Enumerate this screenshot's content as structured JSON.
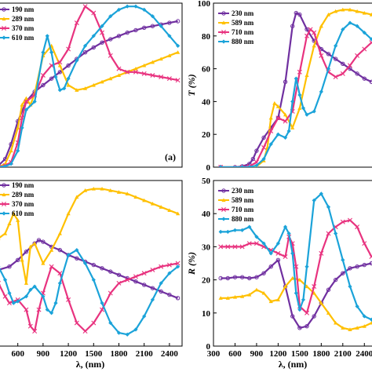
{
  "chart_data": [
    {
      "type": "line",
      "panel_label": "(a)",
      "ylabel": "",
      "xlabel": "",
      "xlim": [
        370,
        2550
      ],
      "ylim": [
        0,
        100
      ],
      "xticks": [],
      "yticks": [],
      "legend": "top-left",
      "series": [
        {
          "name": "190 nm",
          "color": "#7030A0",
          "marker": "circle",
          "x": [
            370,
            450,
            520,
            600,
            700,
            800,
            900,
            1000,
            1100,
            1200,
            1300,
            1400,
            1500,
            1600,
            1700,
            1800,
            1900,
            2000,
            2100,
            2200,
            2300,
            2400,
            2500
          ],
          "y": [
            1,
            5,
            14,
            28,
            40,
            46,
            50,
            54,
            58,
            62,
            66,
            70,
            73,
            76,
            78,
            80,
            82,
            83.5,
            85,
            86,
            87,
            88,
            89
          ]
        },
        {
          "name": "289 nm",
          "color": "#FFC000",
          "marker": "triangle",
          "x": [
            370,
            450,
            520,
            600,
            650,
            700,
            750,
            800,
            900,
            1000,
            1100,
            1200,
            1300,
            1400,
            1500,
            1600,
            1700,
            1800,
            1900,
            2000,
            2100,
            2200,
            2300,
            2400,
            2500
          ],
          "y": [
            0,
            2,
            10,
            24,
            38,
            42,
            38,
            45,
            68,
            74,
            62,
            50,
            47,
            48,
            50,
            52,
            54,
            56,
            58,
            60,
            62,
            64,
            66,
            68,
            70
          ]
        },
        {
          "name": "370 nm",
          "color": "#E8337F",
          "marker": "x",
          "x": [
            370,
            450,
            520,
            600,
            650,
            700,
            800,
            900,
            1000,
            1100,
            1200,
            1300,
            1400,
            1500,
            1600,
            1700,
            1800,
            1900,
            2000,
            2100,
            2200,
            2300,
            2400,
            2500
          ],
          "y": [
            0,
            1,
            3,
            15,
            30,
            40,
            44,
            56,
            62,
            64,
            72,
            88,
            98,
            94,
            82,
            68,
            60,
            58,
            58,
            57,
            56,
            55,
            54,
            53
          ]
        },
        {
          "name": "610 nm",
          "color": "#1BA3D9",
          "marker": "diamond",
          "x": [
            370,
            450,
            520,
            600,
            650,
            700,
            800,
            900,
            950,
            1000,
            1050,
            1100,
            1150,
            1200,
            1300,
            1400,
            1500,
            1600,
            1700,
            1800,
            1900,
            2000,
            2100,
            2200,
            2300,
            2400,
            2500
          ],
          "y": [
            0,
            0.5,
            2,
            10,
            24,
            35,
            40,
            70,
            80,
            70,
            55,
            47,
            48,
            54,
            65,
            74,
            80,
            86,
            92,
            96,
            98,
            98,
            96,
            92,
            86,
            80,
            74
          ]
        }
      ]
    },
    {
      "type": "line",
      "panel_label": "",
      "ylabel": "T (%)",
      "xlabel": "",
      "xlim": [
        300,
        2550
      ],
      "ylim": [
        0,
        100
      ],
      "xticks": [],
      "yticks": [
        0,
        20,
        40,
        60,
        80,
        100
      ],
      "legend": "top-left",
      "series": [
        {
          "name": "230 nm",
          "color": "#7030A0",
          "marker": "circle",
          "x": [
            400,
            600,
            700,
            800,
            850,
            900,
            1000,
            1100,
            1200,
            1300,
            1400,
            1450,
            1500,
            1600,
            1700,
            1800,
            1900,
            2000,
            2100,
            2200,
            2300,
            2400,
            2500
          ],
          "y": [
            0,
            0,
            0.5,
            2,
            5,
            10,
            18,
            24,
            30,
            52,
            86,
            94,
            93,
            84,
            77,
            72,
            69,
            66,
            63,
            60,
            57,
            54,
            52
          ]
        },
        {
          "name": "589 nm",
          "color": "#FFC000",
          "marker": "triangle",
          "x": [
            400,
            700,
            800,
            900,
            1000,
            1050,
            1100,
            1150,
            1200,
            1300,
            1400,
            1500,
            1600,
            1700,
            1800,
            1900,
            2000,
            2100,
            2200,
            2300,
            2400,
            2500
          ],
          "y": [
            0,
            0,
            0,
            0.5,
            4,
            12,
            30,
            39,
            37,
            32,
            24,
            36,
            56,
            74,
            86,
            93,
            95,
            96,
            96,
            95,
            94,
            93
          ]
        },
        {
          "name": "710 nm",
          "color": "#E8337F",
          "marker": "x",
          "x": [
            400,
            700,
            800,
            900,
            1000,
            1100,
            1200,
            1300,
            1400,
            1500,
            1600,
            1650,
            1700,
            1800,
            1900,
            2000,
            2100,
            2200,
            2300,
            2400,
            2500
          ],
          "y": [
            0,
            0,
            0.5,
            3,
            12,
            22,
            30,
            28,
            34,
            58,
            80,
            84,
            82,
            68,
            58,
            55,
            57,
            62,
            68,
            72,
            76
          ]
        },
        {
          "name": "880 nm",
          "color": "#1BA3D9",
          "marker": "diamond",
          "x": [
            400,
            700,
            800,
            900,
            1000,
            1100,
            1200,
            1300,
            1350,
            1400,
            1450,
            1500,
            1550,
            1600,
            1700,
            1800,
            1900,
            2000,
            2100,
            2200,
            2300,
            2400,
            2500
          ],
          "y": [
            0,
            0,
            0,
            1,
            5,
            14,
            20,
            18,
            22,
            40,
            54,
            44,
            36,
            32,
            34,
            46,
            60,
            74,
            84,
            88,
            86,
            82,
            78
          ]
        }
      ]
    },
    {
      "type": "line",
      "panel_label": "",
      "ylabel": "",
      "xlabel": "λ, (nm)",
      "xlim": [
        370,
        2550
      ],
      "ylim": [
        0,
        100
      ],
      "xticks": [
        600,
        900,
        1200,
        1500,
        1800,
        2100,
        2400
      ],
      "yticks": [],
      "legend": "top-left",
      "series": [
        {
          "name": "190 nm",
          "color": "#7030A0",
          "marker": "circle",
          "x": [
            370,
            500,
            600,
            700,
            800,
            850,
            900,
            1000,
            1100,
            1200,
            1300,
            1400,
            1500,
            1600,
            1700,
            1800,
            1900,
            2000,
            2100,
            2200,
            2300,
            2400,
            2500
          ],
          "y": [
            46,
            48,
            52,
            57,
            62,
            64,
            63,
            60,
            58,
            55,
            53,
            51,
            49,
            47,
            45,
            43,
            41,
            39,
            37,
            35,
            33,
            31,
            29
          ]
        },
        {
          "name": "289 nm",
          "color": "#FFC000",
          "marker": "triangle",
          "x": [
            370,
            450,
            500,
            550,
            600,
            650,
            700,
            750,
            800,
            900,
            1000,
            1100,
            1200,
            1300,
            1400,
            1500,
            1600,
            1700,
            1800,
            1900,
            2000,
            2100,
            2200,
            2300,
            2400,
            2500
          ],
          "y": [
            65,
            68,
            74,
            80,
            76,
            52,
            38,
            60,
            62,
            50,
            58,
            68,
            80,
            90,
            94,
            95,
            95,
            94,
            93,
            92,
            90,
            88,
            86,
            84,
            82,
            80
          ]
        },
        {
          "name": "370 nm",
          "color": "#E8337F",
          "marker": "x",
          "x": [
            370,
            450,
            500,
            600,
            700,
            750,
            800,
            850,
            900,
            1000,
            1100,
            1200,
            1300,
            1400,
            1500,
            1600,
            1700,
            1800,
            1900,
            2000,
            2100,
            2200,
            2300,
            2400,
            2500
          ],
          "y": [
            38,
            30,
            26,
            28,
            22,
            12,
            9,
            22,
            32,
            48,
            44,
            28,
            14,
            9,
            14,
            22,
            32,
            38,
            40,
            42,
            44,
            46,
            48,
            49,
            50
          ]
        },
        {
          "name": "610 nm",
          "color": "#1BA3D9",
          "marker": "diamond",
          "x": [
            370,
            450,
            500,
            550,
            600,
            700,
            750,
            800,
            900,
            950,
            1000,
            1050,
            1100,
            1200,
            1300,
            1400,
            1500,
            1600,
            1700,
            1800,
            1900,
            2000,
            2100,
            2200,
            2300,
            2400,
            2500
          ],
          "y": [
            48,
            40,
            32,
            26,
            27,
            30,
            34,
            36,
            30,
            22,
            20,
            26,
            38,
            55,
            58,
            50,
            40,
            26,
            14,
            8,
            7,
            10,
            18,
            28,
            38,
            44,
            48
          ]
        }
      ]
    },
    {
      "type": "line",
      "panel_label": "",
      "ylabel": "R (%)",
      "xlabel": "λ, (nm)",
      "xlim": [
        300,
        2550
      ],
      "ylim": [
        0,
        50
      ],
      "xticks": [
        300,
        600,
        900,
        1200,
        1500,
        1800,
        2100,
        2400
      ],
      "yticks": [
        0,
        10,
        20,
        30,
        40,
        50
      ],
      "legend": "top-left",
      "series": [
        {
          "name": "230 nm",
          "color": "#7030A0",
          "marker": "circle",
          "x": [
            400,
            500,
            600,
            700,
            800,
            900,
            1000,
            1100,
            1200,
            1300,
            1400,
            1500,
            1600,
            1700,
            1800,
            1900,
            2000,
            2100,
            2200,
            2300,
            2400,
            2500
          ],
          "y": [
            20.5,
            20.5,
            20.8,
            20.8,
            20.5,
            20.8,
            22,
            24,
            26,
            18,
            9,
            5.5,
            6,
            9,
            13,
            17,
            20,
            22,
            23.5,
            24,
            24.5,
            25
          ]
        },
        {
          "name": "589 nm",
          "color": "#FFC000",
          "marker": "triangle",
          "x": [
            400,
            500,
            600,
            700,
            800,
            900,
            1000,
            1100,
            1200,
            1300,
            1400,
            1500,
            1600,
            1700,
            1800,
            1900,
            2000,
            2100,
            2200,
            2300,
            2400,
            2500
          ],
          "y": [
            14.5,
            14.5,
            14.8,
            15,
            15.5,
            17,
            16,
            13.5,
            14,
            18,
            20.5,
            20,
            18,
            16,
            13,
            10,
            7,
            5.5,
            5,
            5.5,
            6,
            7
          ]
        },
        {
          "name": "710 nm",
          "color": "#E8337F",
          "marker": "x",
          "x": [
            400,
            500,
            600,
            700,
            800,
            900,
            1000,
            1100,
            1200,
            1300,
            1350,
            1400,
            1450,
            1500,
            1600,
            1700,
            1800,
            1900,
            2000,
            2100,
            2200,
            2300,
            2400,
            2500
          ],
          "y": [
            30,
            30,
            30,
            30,
            31,
            31,
            30,
            29,
            28,
            27,
            33,
            31,
            24,
            12,
            10,
            18,
            28,
            34,
            36,
            37.5,
            38,
            36,
            31,
            27
          ]
        },
        {
          "name": "880 nm",
          "color": "#1BA3D9",
          "marker": "diamond",
          "x": [
            400,
            500,
            600,
            700,
            800,
            900,
            1000,
            1100,
            1200,
            1300,
            1350,
            1400,
            1450,
            1500,
            1550,
            1600,
            1700,
            1800,
            1900,
            2000,
            2100,
            2200,
            2300,
            2400,
            2500
          ],
          "y": [
            34.5,
            34.5,
            35,
            35,
            36,
            33,
            31,
            28,
            31,
            36,
            34,
            28,
            16,
            11,
            14,
            24,
            44,
            46,
            42,
            34,
            26,
            18,
            12,
            9,
            8
          ]
        }
      ]
    }
  ]
}
